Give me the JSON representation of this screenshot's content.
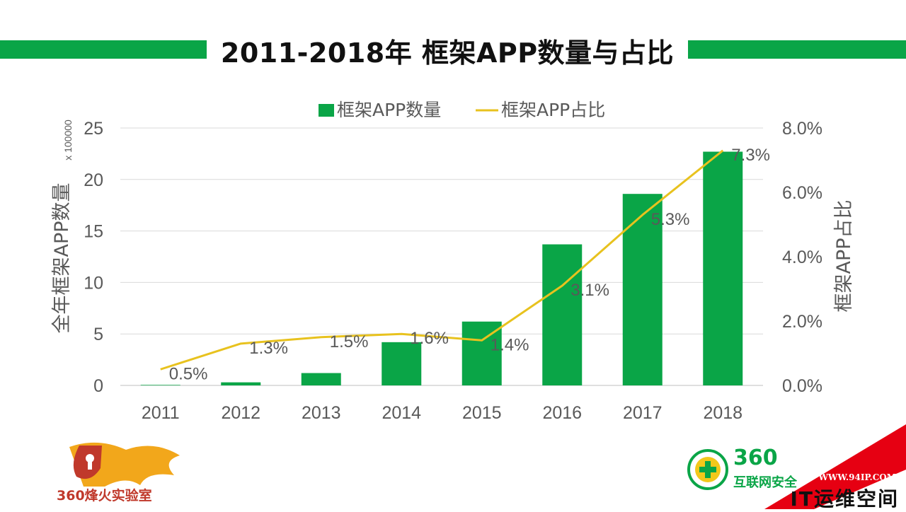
{
  "title": "2011-2018年 框架APP数量与占比",
  "chart_data": {
    "type": "bar",
    "categories": [
      "2011",
      "2012",
      "2013",
      "2014",
      "2015",
      "2016",
      "2017",
      "2018"
    ],
    "series": [
      {
        "name": "框架APP数量",
        "type": "bar",
        "axis": "left",
        "color": "#0aa547",
        "values": [
          0.05,
          0.3,
          1.2,
          4.2,
          6.2,
          13.7,
          18.6,
          22.7
        ]
      },
      {
        "name": "框架APP占比",
        "type": "line",
        "axis": "right",
        "color": "#e8c21e",
        "values": [
          0.5,
          1.3,
          1.5,
          1.6,
          1.4,
          3.1,
          5.3,
          7.3
        ],
        "labels": [
          "0.5%",
          "1.3%",
          "1.5%",
          "1.6%",
          "1.4%",
          "3.1%",
          "5.3%",
          "7.3%"
        ]
      }
    ],
    "ylabel_left": "全年框架APP数量",
    "ylabel_left_unit": "x 100000",
    "ylabel_right": "框架APP占比",
    "ylim_left": [
      0,
      25
    ],
    "yticks_left": [
      "0",
      "5",
      "10",
      "15",
      "20",
      "25"
    ],
    "ylim_right": [
      0,
      8
    ],
    "yticks_right": [
      "0.0%",
      "2.0%",
      "4.0%",
      "6.0%",
      "8.0%"
    ],
    "grid": true,
    "legend": "top-center"
  },
  "logos": {
    "left_text": "360烽火实验室",
    "right_num": "360",
    "right_text": "互联网安全",
    "corner_url": "WWW.94IP.COM",
    "corner_brand": "IT运维空间"
  },
  "colors": {
    "accent": "#0aa547",
    "line": "#e8c21e",
    "corner": "#e60012"
  }
}
